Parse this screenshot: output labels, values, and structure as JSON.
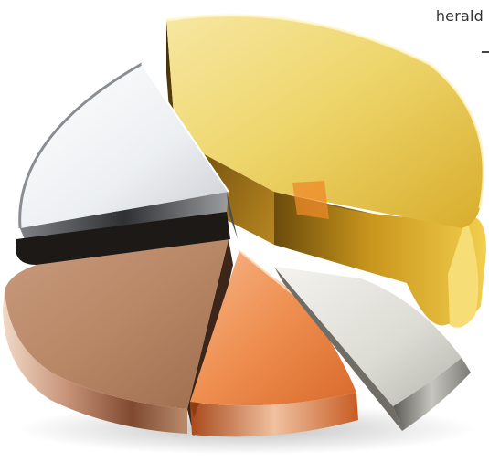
{
  "caption": {
    "masthead": "herald"
  },
  "palette": {
    "gold": "#e8c23a",
    "silver": "#d9dadd",
    "bronze": "#b27a5a",
    "copper": "#ee8a4c",
    "platinum": "#cfcfc9",
    "background": "#ffffff"
  },
  "icons": {
    "pie": "metallic-3d-pie-chart-illustration"
  }
}
